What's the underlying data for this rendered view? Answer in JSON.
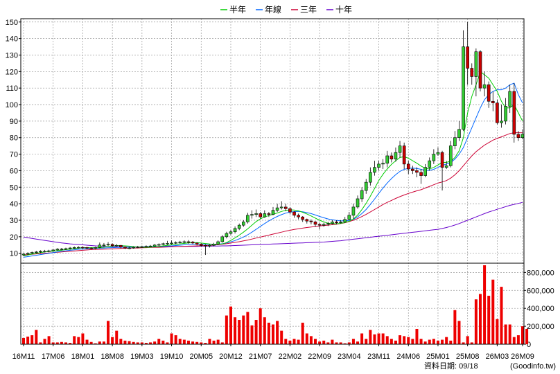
{
  "chart_data": {
    "type": "candlestick",
    "title": "",
    "legend": {
      "placement": "top-center",
      "items": [
        {
          "name": "半年",
          "color": "#00cc00"
        },
        {
          "name": "年線",
          "color": "#0066ff"
        },
        {
          "name": "三年",
          "color": "#cc0033"
        },
        {
          "name": "十年",
          "color": "#6600cc"
        }
      ]
    },
    "grid": true,
    "price_axis": {
      "min": 4,
      "max": 152,
      "ticks": [
        10,
        20,
        30,
        40,
        50,
        60,
        70,
        80,
        90,
        100,
        110,
        120,
        130,
        140,
        150
      ],
      "side": "left"
    },
    "volume_axis": {
      "min": 0,
      "max": 880000,
      "ticks": [
        0,
        200000,
        400000,
        600000,
        800000
      ],
      "tick_labels": [
        "0",
        "200,000",
        "400,000",
        "600,000",
        "800,000"
      ],
      "side": "right"
    },
    "x_ticks": [
      "16M11",
      "17M06",
      "18M01",
      "18M08",
      "19M03",
      "19M10",
      "20M05",
      "20M12",
      "21M07",
      "22M02",
      "22M09",
      "23M04",
      "23M11",
      "24M06",
      "25M01",
      "25M08",
      "26M03",
      "26M09"
    ],
    "x_tick_index": [
      0,
      7,
      14,
      21,
      28,
      35,
      42,
      49,
      56,
      63,
      70,
      77,
      84,
      91,
      98,
      105,
      112,
      118
    ],
    "up_color": "#33cc33",
    "down_color": "#cc0000",
    "candles": {
      "open": [
        9.0,
        9.5,
        10.0,
        10.5,
        10.8,
        11.2,
        11.2,
        11.5,
        12.0,
        12.5,
        12.6,
        12.8,
        13.2,
        13.5,
        13.6,
        13.5,
        13.2,
        13.0,
        13.5,
        15.0,
        15.0,
        15.4,
        14.6,
        14.8,
        13.8,
        13.2,
        13.2,
        13.6,
        13.9,
        14.0,
        14.2,
        14.4,
        15.0,
        15.3,
        15.8,
        16.0,
        16.2,
        16.5,
        16.8,
        17.0,
        16.8,
        16.2,
        15.5,
        14.8,
        14.5,
        14.8,
        15.6,
        17.0,
        20.0,
        22.0,
        23.0,
        25.0,
        27.0,
        29.0,
        33.0,
        33.5,
        34.0,
        32.0,
        34.0,
        33.5,
        36.0,
        37.5,
        38.0,
        37.0,
        35.0,
        33.0,
        32.0,
        30.5,
        29.5,
        29.0,
        27.5,
        27.0,
        27.5,
        28.0,
        29.0,
        28.5,
        29.0,
        30.5,
        33.0,
        38.0,
        43.0,
        48.0,
        53.0,
        59.0,
        62.0,
        64.0,
        64.5,
        69.0,
        67.0,
        71.0,
        75.0,
        64.0,
        61.0,
        60.0,
        59.0,
        57.0,
        62.0,
        66.0,
        70.0,
        71.0,
        62.0,
        63.0,
        75.0,
        80.0,
        85.0,
        135.0,
        122.0,
        117.0,
        132.0,
        110.0,
        112.0,
        102.0,
        101.0,
        89.0,
        90.0,
        99.0,
        108.0,
        82.0,
        80.0
      ],
      "close": [
        9.5,
        10.0,
        10.5,
        10.8,
        11.2,
        11.2,
        11.5,
        12.0,
        12.5,
        12.6,
        12.8,
        13.2,
        13.5,
        13.6,
        13.5,
        13.2,
        13.0,
        13.5,
        15.0,
        15.0,
        15.4,
        14.6,
        14.8,
        13.8,
        13.2,
        13.2,
        13.6,
        13.9,
        14.0,
        14.2,
        14.4,
        15.0,
        15.3,
        15.8,
        16.0,
        16.2,
        16.5,
        16.8,
        17.0,
        16.8,
        16.2,
        15.5,
        14.8,
        14.5,
        14.8,
        15.6,
        17.0,
        20.0,
        22.0,
        23.0,
        25.0,
        27.0,
        29.0,
        33.0,
        33.5,
        34.0,
        32.0,
        34.0,
        33.5,
        36.0,
        37.5,
        38.0,
        37.0,
        35.0,
        33.0,
        32.0,
        30.5,
        29.5,
        29.0,
        27.5,
        27.0,
        27.5,
        28.0,
        29.0,
        28.5,
        29.0,
        30.5,
        33.0,
        38.0,
        43.0,
        48.0,
        53.0,
        59.0,
        62.0,
        64.0,
        64.5,
        69.0,
        67.0,
        71.0,
        75.0,
        64.0,
        61.0,
        60.0,
        59.0,
        57.0,
        62.0,
        66.0,
        70.0,
        71.0,
        62.0,
        63.0,
        75.0,
        80.0,
        85.0,
        135.0,
        122.0,
        117.0,
        132.0,
        110.0,
        112.0,
        102.0,
        101.0,
        89.0,
        90.0,
        99.0,
        108.0,
        82.0,
        80.0,
        82.0
      ],
      "high": [
        10.2,
        10.6,
        11.0,
        11.4,
        11.8,
        12.0,
        12.1,
        12.6,
        13.1,
        13.2,
        13.4,
        13.8,
        14.1,
        14.2,
        14.1,
        13.9,
        13.6,
        14.0,
        16.5,
        16.2,
        16.8,
        16.0,
        15.6,
        15.0,
        14.0,
        13.8,
        14.2,
        14.5,
        14.6,
        14.8,
        15.0,
        15.6,
        16.0,
        16.4,
        17.5,
        17.8,
        17.2,
        17.5,
        17.8,
        18.0,
        17.4,
        16.6,
        16.0,
        15.4,
        15.5,
        16.3,
        17.8,
        21.0,
        23.0,
        24.0,
        26.2,
        28.0,
        30.0,
        34.5,
        36.0,
        36.5,
        35.0,
        36.0,
        35.0,
        38.0,
        40.0,
        41.5,
        40.0,
        38.0,
        35.5,
        34.0,
        32.5,
        31.0,
        30.5,
        29.5,
        28.5,
        28.5,
        29.0,
        30.0,
        30.0,
        30.0,
        32.0,
        35.0,
        40.0,
        45.0,
        50.0,
        55.0,
        62.0,
        66.0,
        66.0,
        67.0,
        72.0,
        71.0,
        74.0,
        78.0,
        77.0,
        66.0,
        63.0,
        62.0,
        61.0,
        64.0,
        68.0,
        73.0,
        74.0,
        72.0,
        66.0,
        78.0,
        84.0,
        90.0,
        145.0,
        150.0,
        125.0,
        134.0,
        133.0,
        120.0,
        114.0,
        108.0,
        103.0,
        100.0,
        104.0,
        112.0,
        113.0,
        84.0,
        85.0
      ],
      "low": [
        8.2,
        8.8,
        9.4,
        9.8,
        10.2,
        10.5,
        10.6,
        11.0,
        11.5,
        11.8,
        12.0,
        12.2,
        12.6,
        12.9,
        12.8,
        12.5,
        12.3,
        12.5,
        13.0,
        14.0,
        14.3,
        14.0,
        14.0,
        13.0,
        12.5,
        12.5,
        12.8,
        13.1,
        13.3,
        13.5,
        13.7,
        14.0,
        14.4,
        14.8,
        15.0,
        15.3,
        15.6,
        15.9,
        16.0,
        15.8,
        15.5,
        14.8,
        14.0,
        9.0,
        13.5,
        14.2,
        15.0,
        16.5,
        19.0,
        21.0,
        22.0,
        24.0,
        26.0,
        28.0,
        31.0,
        32.0,
        31.0,
        31.5,
        32.0,
        33.0,
        35.0,
        36.5,
        35.5,
        33.5,
        31.5,
        30.5,
        29.0,
        28.0,
        27.5,
        26.0,
        24.5,
        26.0,
        26.5,
        27.5,
        27.5,
        28.0,
        28.5,
        30.0,
        31.0,
        37.0,
        41.0,
        46.0,
        51.0,
        57.0,
        60.0,
        61.0,
        62.0,
        65.0,
        65.5,
        68.0,
        61.0,
        58.0,
        58.0,
        56.0,
        52.0,
        56.0,
        60.0,
        64.0,
        69.0,
        48.0,
        61.0,
        62.0,
        73.0,
        78.0,
        84.0,
        112.0,
        112.0,
        105.0,
        108.0,
        105.0,
        98.0,
        96.0,
        88.0,
        86.0,
        88.0,
        95.0,
        77.0,
        78.0,
        79.0
      ]
    },
    "ma_half_year": [
      8.4,
      9.0,
      9.5,
      10.0,
      10.4,
      10.8,
      11.1,
      11.3,
      11.6,
      11.9,
      12.2,
      12.5,
      12.8,
      13.1,
      13.3,
      13.4,
      13.4,
      13.3,
      13.4,
      13.7,
      14.1,
      14.4,
      14.6,
      14.6,
      14.5,
      14.3,
      14.0,
      13.8,
      13.6,
      13.6,
      13.7,
      13.9,
      14.2,
      14.5,
      14.8,
      15.1,
      15.4,
      15.7,
      16.0,
      16.3,
      16.4,
      16.4,
      16.2,
      15.9,
      15.6,
      15.4,
      15.4,
      15.6,
      16.5,
      17.8,
      19.3,
      21.0,
      22.8,
      24.8,
      27.0,
      29.2,
      30.8,
      32.0,
      32.8,
      33.6,
      34.4,
      35.3,
      36.0,
      36.3,
      36.2,
      35.7,
      34.8,
      33.8,
      32.6,
      31.3,
      30.0,
      29.0,
      28.2,
      27.9,
      27.9,
      28.1,
      28.6,
      29.4,
      30.8,
      33.1,
      36.4,
      40.2,
      44.5,
      49.2,
      54.0,
      57.8,
      61.0,
      63.8,
      66.0,
      68.0,
      68.5,
      67.5,
      66.0,
      64.5,
      62.8,
      61.5,
      61.0,
      62.0,
      63.5,
      65.0,
      65.0,
      65.8,
      68.0,
      72.0,
      80.0,
      95.0,
      105.0,
      112.0,
      120.0,
      118.0,
      116.0,
      112.0,
      108.0,
      102.0,
      98.0,
      98.0,
      100.0,
      95.0,
      90.0
    ],
    "ma_year": [
      7.6,
      8.0,
      8.4,
      8.8,
      9.2,
      9.6,
      10.0,
      10.4,
      10.8,
      11.2,
      11.5,
      11.8,
      12.1,
      12.4,
      12.6,
      12.8,
      12.9,
      13.0,
      13.1,
      13.2,
      13.3,
      13.4,
      13.5,
      13.6,
      13.7,
      13.7,
      13.8,
      13.8,
      13.9,
      13.9,
      14.0,
      14.0,
      14.1,
      14.2,
      14.3,
      14.5,
      14.7,
      14.9,
      15.1,
      15.3,
      15.4,
      15.5,
      15.5,
      15.4,
      15.4,
      15.4,
      15.5,
      15.8,
      16.3,
      16.9,
      17.7,
      18.7,
      19.8,
      21.2,
      22.8,
      24.5,
      26.3,
      28.0,
      29.6,
      31.0,
      32.3,
      33.4,
      34.3,
      34.9,
      35.2,
      35.3,
      35.1,
      34.6,
      34.0,
      33.2,
      32.3,
      31.5,
      30.8,
      30.3,
      29.9,
      29.7,
      29.6,
      29.9,
      30.6,
      32.0,
      34.0,
      36.5,
      39.5,
      42.8,
      46.2,
      49.5,
      52.5,
      55.2,
      57.6,
      59.6,
      60.8,
      61.4,
      61.6,
      61.3,
      60.8,
      60.2,
      60.2,
      60.8,
      62.0,
      63.2,
      64.0,
      65.0,
      67.0,
      70.0,
      74.0,
      80.0,
      86.0,
      92.0,
      98.0,
      103.0,
      106.0,
      108.0,
      109.0,
      109.0,
      110.0,
      112.0,
      113.0,
      106.0,
      101.0
    ],
    "ma_three_year": [
      9.0,
      9.2,
      9.4,
      9.6,
      9.8,
      10.0,
      10.2,
      10.4,
      10.6,
      10.8,
      11.0,
      11.2,
      11.4,
      11.6,
      11.8,
      12.0,
      12.2,
      12.3,
      12.4,
      12.5,
      12.6,
      12.7,
      12.8,
      12.9,
      13.0,
      13.1,
      13.2,
      13.2,
      13.3,
      13.4,
      13.5,
      13.6,
      13.6,
      13.7,
      13.8,
      13.9,
      14.0,
      14.1,
      14.2,
      14.3,
      14.4,
      14.5,
      14.6,
      14.7,
      14.8,
      15.0,
      15.2,
      15.5,
      15.8,
      16.2,
      16.6,
      17.0,
      17.5,
      18.0,
      18.6,
      19.2,
      19.8,
      20.4,
      21.0,
      21.6,
      22.2,
      22.8,
      23.4,
      23.9,
      24.4,
      24.8,
      25.2,
      25.6,
      25.9,
      26.2,
      26.5,
      26.8,
      27.0,
      27.3,
      27.6,
      28.0,
      28.5,
      29.2,
      30.0,
      31.0,
      32.2,
      33.5,
      35.0,
      36.5,
      38.0,
      39.5,
      40.8,
      42.0,
      43.2,
      44.3,
      45.3,
      46.2,
      47.0,
      47.8,
      48.5,
      49.5,
      50.5,
      51.5,
      52.5,
      53.2,
      54.0,
      55.5,
      57.5,
      60.0,
      63.0,
      66.0,
      69.0,
      71.5,
      73.5,
      75.5,
      77.0,
      78.5,
      79.5,
      80.5,
      81.5,
      82.5,
      83.0,
      83.0,
      83.0
    ],
    "ma_ten_year": [
      19.8,
      19.4,
      19.0,
      18.6,
      18.2,
      17.8,
      17.4,
      17.0,
      16.6,
      16.3,
      16.0,
      15.7,
      15.5,
      15.3,
      15.1,
      14.9,
      14.7,
      14.5,
      14.3,
      14.2,
      14.1,
      14.0,
      13.9,
      13.9,
      13.8,
      13.8,
      13.8,
      13.8,
      13.8,
      13.8,
      13.9,
      13.9,
      13.9,
      14.0,
      14.0,
      14.0,
      14.1,
      14.1,
      14.2,
      14.2,
      14.2,
      14.2,
      14.3,
      14.3,
      14.3,
      14.4,
      14.4,
      14.5,
      14.5,
      14.6,
      14.7,
      14.8,
      14.9,
      15.0,
      15.1,
      15.2,
      15.3,
      15.4,
      15.5,
      15.6,
      15.7,
      15.8,
      15.9,
      16.0,
      16.1,
      16.2,
      16.3,
      16.4,
      16.5,
      16.6,
      16.7,
      16.8,
      17.0,
      17.2,
      17.4,
      17.6,
      17.9,
      18.2,
      18.5,
      18.8,
      19.1,
      19.4,
      19.7,
      20.0,
      20.3,
      20.6,
      20.9,
      21.2,
      21.5,
      21.8,
      22.1,
      22.4,
      22.7,
      23.0,
      23.3,
      23.6,
      23.9,
      24.2,
      24.5,
      25.0,
      25.6,
      26.3,
      27.1,
      28.0,
      29.0,
      30.0,
      31.0,
      32.0,
      33.0,
      34.0,
      35.0,
      35.8,
      36.6,
      37.4,
      38.2,
      39.0,
      39.6,
      40.2,
      40.8
    ],
    "volume": [
      70000,
      85000,
      100000,
      160000,
      20000,
      60000,
      90000,
      20000,
      20000,
      25000,
      20000,
      15000,
      90000,
      80000,
      120000,
      50000,
      25000,
      10000,
      30000,
      30000,
      260000,
      80000,
      150000,
      60000,
      40000,
      35000,
      25000,
      20000,
      20000,
      15000,
      20000,
      30000,
      60000,
      40000,
      20000,
      120000,
      100000,
      60000,
      50000,
      40000,
      30000,
      25000,
      20000,
      15000,
      60000,
      40000,
      50000,
      20000,
      320000,
      420000,
      300000,
      270000,
      320000,
      360000,
      210000,
      270000,
      400000,
      300000,
      240000,
      220000,
      260000,
      150000,
      60000,
      40000,
      60000,
      50000,
      240000,
      120000,
      90000,
      60000,
      30000,
      40000,
      20000,
      50000,
      20000,
      20000,
      10000,
      20000,
      60000,
      30000,
      120000,
      60000,
      160000,
      110000,
      120000,
      120000,
      90000,
      60000,
      40000,
      100000,
      90000,
      80000,
      60000,
      170000,
      60000,
      30000,
      50000,
      60000,
      40000,
      50000,
      80000,
      40000,
      380000,
      260000,
      20000,
      90000,
      20000,
      500000,
      560000,
      880000,
      540000,
      720000,
      280000,
      640000,
      220000,
      220000,
      80000,
      100000,
      200000,
      170000
    ]
  },
  "footer": {
    "data_date": "資料日期: 09/18",
    "source": "(Goodinfo.tw)"
  }
}
